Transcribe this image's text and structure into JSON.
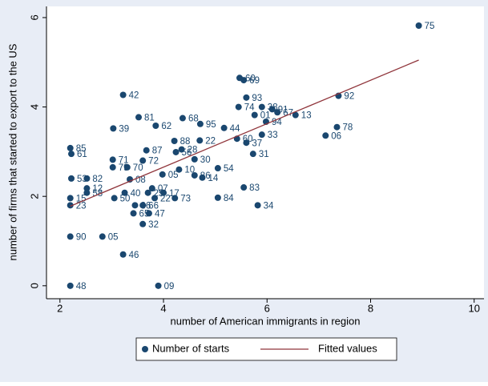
{
  "chart_data": {
    "type": "scatter",
    "x_label": "number of American immigrants in region",
    "y_label": "number of firms that started to export to the US",
    "xlim": [
      1.74,
      10.19
    ],
    "ylim": [
      -0.29,
      6.25
    ],
    "xticks": [
      2,
      4,
      6,
      8,
      10
    ],
    "yticks": [
      0,
      2,
      4,
      6
    ],
    "legend": "bottom",
    "series": [
      {
        "name": "Number of starts",
        "color": "#1a476f",
        "kind": "points",
        "x": [
          8.93,
          5.47,
          5.55,
          7.38,
          3.22,
          5.6,
          5.9,
          5.45,
          6.1,
          6.2,
          6.55,
          5.76,
          5.98,
          3.52,
          4.37,
          3.85,
          4.71,
          5.17,
          3.03,
          7.35,
          7.13,
          5.9,
          5.42,
          5.6,
          5.73,
          2.2,
          2.22,
          4.7,
          3.02,
          3.02,
          3.3,
          3.67,
          3.6,
          4.6,
          5.05,
          4.75,
          4.6,
          2.22,
          2.52,
          3.35,
          2.52,
          2.52,
          2.2,
          2.2,
          3.05,
          3.25,
          3.7,
          3.78,
          4.0,
          3.83,
          4.22,
          5.05,
          5.55,
          5.82,
          3.6,
          3.45,
          3.42,
          3.72,
          3.6,
          2.2,
          2.82,
          3.22,
          2.2,
          3.9,
          3.98,
          4.3,
          4.24,
          4.35,
          4.21
        ],
        "values": [
          5.82,
          4.65,
          4.6,
          4.25,
          4.27,
          4.21,
          4.0,
          4.0,
          3.95,
          3.88,
          3.82,
          3.82,
          3.67,
          3.77,
          3.75,
          3.58,
          3.62,
          3.53,
          3.52,
          3.55,
          3.36,
          3.38,
          3.29,
          3.2,
          2.95,
          3.08,
          2.95,
          3.25,
          2.82,
          2.65,
          2.65,
          3.03,
          2.8,
          2.83,
          2.63,
          2.42,
          2.47,
          2.4,
          2.4,
          2.38,
          2.18,
          2.08,
          1.96,
          1.8,
          1.96,
          2.08,
          2.08,
          2.18,
          2.08,
          1.96,
          1.96,
          1.97,
          2.2,
          1.8,
          1.8,
          1.8,
          1.62,
          1.62,
          1.38,
          1.1,
          1.1,
          0.7,
          0.0,
          0.0,
          2.49,
          2.6,
          2.99,
          3.05,
          3.24
        ],
        "point_labels": [
          "75",
          "60",
          "69",
          "92",
          "42",
          "93",
          "38",
          "74",
          "91",
          "67",
          "13",
          "01",
          "94",
          "81",
          "68",
          "62",
          "95",
          "44",
          "39",
          "78",
          "06",
          "33",
          "60",
          "37",
          "31",
          "85",
          "61",
          "22",
          "71",
          "79",
          "70",
          "87",
          "72",
          "30",
          "54",
          "14",
          "86",
          "53",
          "82",
          "08",
          "12",
          "58",
          "15",
          "23",
          "50",
          "40",
          "25",
          "07",
          "17",
          "22",
          "73",
          "84",
          "83",
          "34",
          "66",
          "36",
          "65",
          "47",
          "32",
          "90",
          "05",
          "46",
          "48",
          "09",
          "05",
          "10",
          "56",
          "28",
          "88"
        ]
      },
      {
        "name": "Fitted values",
        "color": "#90353b",
        "kind": "line",
        "x": [
          2.2,
          8.93
        ],
        "values": [
          1.78,
          5.05
        ]
      }
    ]
  }
}
